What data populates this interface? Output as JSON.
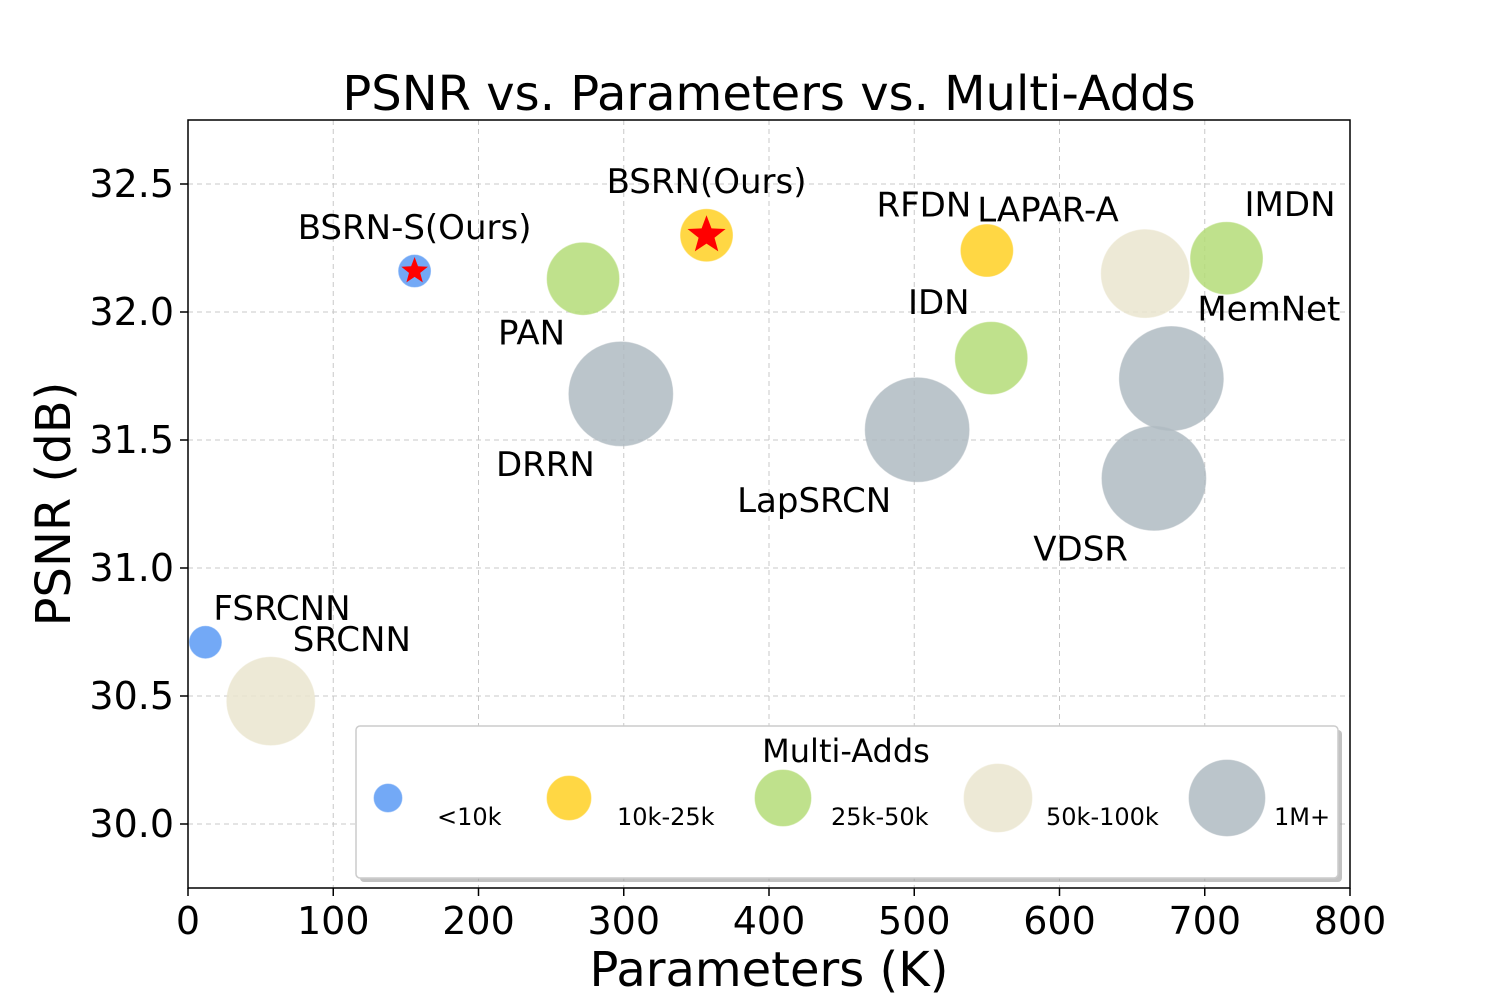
{
  "chart_data": {
    "type": "scatter",
    "title": "PSNR vs. Parameters vs. Multi-Adds",
    "xlabel": "Parameters (K)",
    "ylabel": "PSNR (dB)",
    "xlim": [
      0,
      800
    ],
    "ylim": [
      29.75,
      32.75
    ],
    "xticks": [
      0,
      100,
      200,
      300,
      400,
      500,
      600,
      700,
      800
    ],
    "yticks": [
      30.0,
      30.5,
      31.0,
      31.5,
      32.0,
      32.5
    ],
    "xtick_labels": [
      "0",
      "100",
      "200",
      "300",
      "400",
      "500",
      "600",
      "700",
      "800"
    ],
    "ytick_labels": [
      "30.0",
      "30.5",
      "31.0",
      "31.5",
      "32.0",
      "32.5"
    ],
    "grid": true,
    "legend": {
      "title": "Multi-Adds",
      "placement": "bottom-right",
      "entries": [
        {
          "label": "<10k",
          "category": "lt10k"
        },
        {
          "label": "10k-25k",
          "category": "10k25k"
        },
        {
          "label": "25k-50k",
          "category": "25k50k"
        },
        {
          "label": "50k-100k",
          "category": "50k100k"
        },
        {
          "label": "1M+",
          "category": "1m"
        }
      ]
    },
    "categories": {
      "lt10k": {
        "color": "#5b9bf5",
        "size": 1
      },
      "10k25k": {
        "color": "#ffd124",
        "size": 2
      },
      "25k50k": {
        "color": "#b5dc78",
        "size": 3
      },
      "50k100k": {
        "color": "#ebe6cf",
        "size": 4
      },
      "1m": {
        "color": "#b0bbc2",
        "size": 5
      }
    },
    "points": [
      {
        "label": "FSRCNN",
        "x": 12,
        "y": 30.71,
        "category": "lt10k",
        "label_pos": "upper-right"
      },
      {
        "label": "SRCNN",
        "x": 57,
        "y": 30.48,
        "category": "50k100k",
        "label_pos": "upper-right"
      },
      {
        "label": "BSRN-S(Ours)",
        "x": 156,
        "y": 32.16,
        "category": "lt10k",
        "label_pos": "above",
        "star": true
      },
      {
        "label": "PAN",
        "x": 272,
        "y": 32.13,
        "category": "25k50k",
        "label_pos": "lower-left"
      },
      {
        "label": "DRRN",
        "x": 298,
        "y": 31.68,
        "category": "1m",
        "label_pos": "lower-left"
      },
      {
        "label": "BSRN(Ours)",
        "x": 357,
        "y": 32.3,
        "category": "10k25k",
        "label_pos": "above",
        "star": true
      },
      {
        "label": "LapSRCN",
        "x": 502,
        "y": 31.54,
        "category": "1m",
        "label_pos": "lower-left"
      },
      {
        "label": "RFDN",
        "x": 550,
        "y": 32.24,
        "category": "10k25k",
        "label_pos": "upper-left"
      },
      {
        "label": "IDN",
        "x": 553,
        "y": 31.82,
        "category": "25k50k",
        "label_pos": "upper-left"
      },
      {
        "label": "LAPAR-A",
        "x": 659,
        "y": 32.15,
        "category": "50k100k",
        "label_pos": "upper-left"
      },
      {
        "label": "VDSR",
        "x": 665,
        "y": 31.35,
        "category": "1m",
        "label_pos": "lower-left"
      },
      {
        "label": "MemNet",
        "x": 677,
        "y": 31.74,
        "category": "1m",
        "label_pos": "upper-right"
      },
      {
        "label": "IMDN",
        "x": 715,
        "y": 32.21,
        "category": "25k50k",
        "label_pos": "upper-right"
      }
    ]
  }
}
